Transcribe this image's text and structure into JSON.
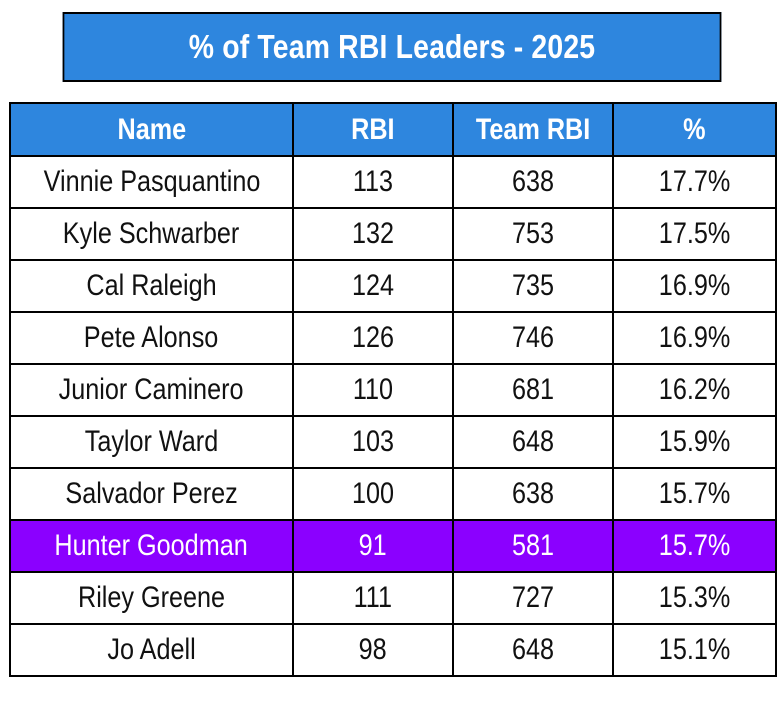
{
  "chart_data": {
    "type": "table",
    "title": "% of Team RBI Leaders - 2025",
    "columns": [
      "Name",
      "RBI",
      "Team RBI",
      "%"
    ],
    "rows": [
      [
        "Vinnie Pasquantino",
        "113",
        "638",
        "17.7%"
      ],
      [
        "Kyle Schwarber",
        "132",
        "753",
        "17.5%"
      ],
      [
        "Cal Raleigh",
        "124",
        "735",
        "16.9%"
      ],
      [
        "Pete Alonso",
        "126",
        "746",
        "16.9%"
      ],
      [
        "Junior Caminero",
        "110",
        "681",
        "16.2%"
      ],
      [
        "Taylor Ward",
        "103",
        "648",
        "15.9%"
      ],
      [
        "Salvador Perez",
        "100",
        "638",
        "15.7%"
      ],
      [
        "Hunter Goodman",
        "91",
        "581",
        "15.7%"
      ],
      [
        "Riley Greene",
        "111",
        "727",
        "15.3%"
      ],
      [
        "Jo Adell",
        "98",
        "648",
        "15.1%"
      ]
    ],
    "highlighted_row": "Hunter Goodman"
  },
  "colors": {
    "header": "#2e86de",
    "highlight": "#8b00ff",
    "border": "#000000"
  }
}
